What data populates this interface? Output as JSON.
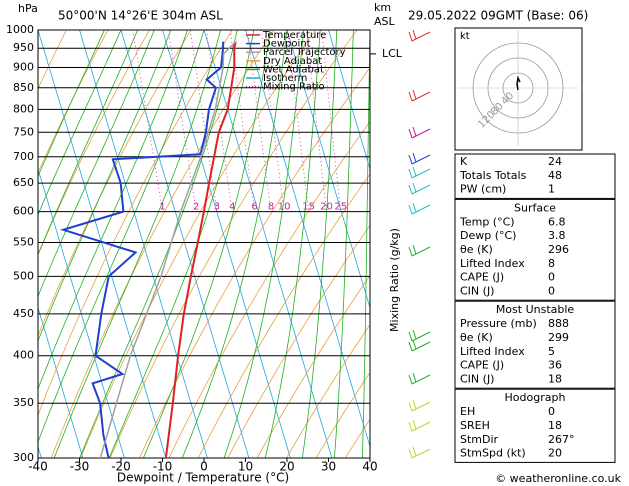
{
  "chart_data": {
    "type": "skew-t",
    "title": "50°00'N 14°26'E 304m ASL",
    "y_label": "hPa",
    "y2_label_lines": [
      "km",
      "ASL"
    ],
    "x_label": "Dewpoint / Temperature (°C)",
    "mixing_ratio_label": "Mixing Ratio (g/kg)",
    "date_title": "29.05.2022 09GMT (Base: 06)",
    "xlim": [
      -40,
      40
    ],
    "xticks": [
      -40,
      -30,
      -20,
      -10,
      0,
      10,
      20,
      30,
      40
    ],
    "ylim": [
      1000,
      300
    ],
    "yticks": [
      300,
      350,
      400,
      450,
      500,
      550,
      600,
      650,
      700,
      750,
      800,
      850,
      900,
      950,
      1000
    ],
    "log_y": true,
    "grid": true,
    "series": [
      {
        "name": "Temperature",
        "color": "#e02020",
        "pressure": [
          968,
          950,
          900,
          850,
          800,
          750,
          700,
          650,
          600,
          550,
          500,
          450,
          400,
          350,
          300
        ],
        "values": [
          6.8,
          6.0,
          4.6,
          2.4,
          0.0,
          -3.8,
          -6.7,
          -9.8,
          -13.1,
          -16.8,
          -20.9,
          -25.3,
          -29.7,
          -34.4,
          -40.0
        ]
      },
      {
        "name": "Dewpoint",
        "color": "#1f3fd0",
        "pressure": [
          968,
          950,
          900,
          870,
          850,
          800,
          750,
          705,
          695,
          650,
          600,
          570,
          535,
          500,
          450,
          400,
          380,
          370,
          350,
          320,
          300
        ],
        "values": [
          3.8,
          3.3,
          1.4,
          -2.9,
          -1.3,
          -4.5,
          -6.9,
          -9.8,
          -31.3,
          -31.1,
          -32.5,
          -48.3,
          -32.5,
          -40.7,
          -45.2,
          -49.6,
          -44.4,
          -52.3,
          -51.9,
          -53.4,
          -53.8
        ]
      },
      {
        "name": "Parcel Trajectory",
        "color": "#a0a0a0",
        "pressure": [
          968,
          935,
          900,
          800,
          700,
          600,
          500,
          400,
          300
        ],
        "values": [
          6.8,
          3.0,
          1.9,
          -3.0,
          -9.9,
          -18.7,
          -28.1,
          -41.2,
          -55.8
        ]
      }
    ],
    "background_lines": [
      {
        "name": "Dry Adiabat",
        "color": "#e8a040"
      },
      {
        "name": "Wet Adiabat",
        "color": "#20b020"
      },
      {
        "name": "Isotherm",
        "color": "#20a8e0"
      },
      {
        "name": "Mixing Ratio",
        "color": "#d020a0",
        "style": "dotted"
      }
    ],
    "mixing_ratios": [
      1,
      2,
      3,
      4,
      6,
      8,
      10,
      15,
      20,
      25
    ],
    "lcl": {
      "label": "LCL",
      "pressure": 935
    },
    "hodograph": {
      "unit_label": "kt",
      "ring_labels": [
        "40",
        "80",
        "120"
      ]
    }
  },
  "indices": {
    "sections": [
      {
        "rows": [
          [
            "K",
            "24"
          ],
          [
            "Totals Totals",
            "48"
          ],
          [
            "PW (cm)",
            "1"
          ]
        ]
      },
      {
        "title": "Surface",
        "rows": [
          [
            "Temp (°C)",
            "6.8"
          ],
          [
            "Dewp (°C)",
            "3.8"
          ],
          [
            "θe (K)",
            "296"
          ],
          [
            "Lifted Index",
            "8"
          ],
          [
            "CAPE (J)",
            "0"
          ],
          [
            "CIN (J)",
            "0"
          ]
        ]
      },
      {
        "title": "Most Unstable",
        "rows": [
          [
            "Pressure (mb)",
            "888"
          ],
          [
            "θe (K)",
            "299"
          ],
          [
            "Lifted Index",
            "5"
          ],
          [
            "CAPE (J)",
            "36"
          ],
          [
            "CIN (J)",
            "18"
          ]
        ]
      },
      {
        "title": "Hodograph",
        "rows": [
          [
            "EH",
            "0"
          ],
          [
            "SREH",
            "18"
          ],
          [
            "StmDir",
            "267°"
          ],
          [
            "StmSpd (kt)",
            "20"
          ]
        ]
      }
    ]
  },
  "footer": "© weatheronline.co.uk"
}
